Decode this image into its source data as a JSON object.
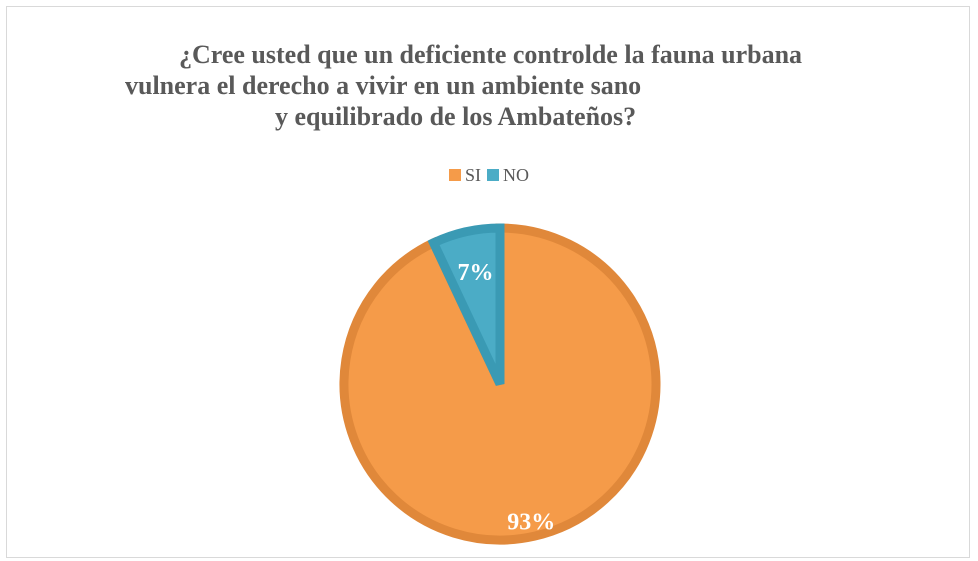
{
  "chart_data": {
    "type": "pie",
    "title_lines": [
      "¿Cree usted que un deficiente controlde la fauna urbana",
      "vulnera el derecho a vivir en un ambiente sano",
      "y equilibrado de los Ambateños?"
    ],
    "categories": [
      "SI",
      "NO"
    ],
    "values": [
      93,
      7
    ],
    "data_labels": [
      "93%",
      "7%"
    ],
    "colors": [
      "#F59B49",
      "#4BACC6"
    ],
    "border_colors": [
      "#E0883A",
      "#3A9AB4"
    ],
    "legend_position": "top"
  }
}
